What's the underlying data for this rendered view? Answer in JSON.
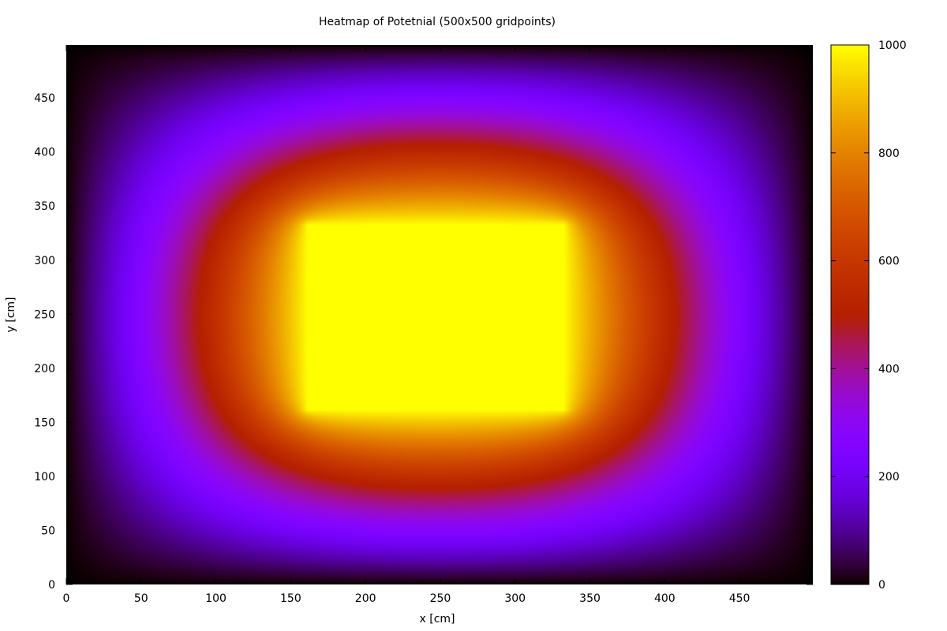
{
  "chart_data": {
    "type": "heatmap",
    "title": "Heatmap of Potetnial (500x500 gridpoints)",
    "xlabel": "x [cm]",
    "ylabel": "y [cm]",
    "xlim": [
      0,
      499
    ],
    "ylim": [
      0,
      499
    ],
    "x_ticks": [
      0,
      50,
      100,
      150,
      200,
      250,
      300,
      350,
      400,
      450
    ],
    "y_ticks": [
      0,
      50,
      100,
      150,
      200,
      250,
      300,
      350,
      400,
      450
    ],
    "colorbar": {
      "range": [
        0,
        1000
      ],
      "ticks": [
        0,
        200,
        400,
        600,
        800,
        1000
      ],
      "palette": "black-blue-purple-red-orange-yellow"
    },
    "field": {
      "description": "Electrostatic potential on a 500x500 grid; boundary held at 0, inner rectangle held at 1000",
      "boundary_value": 0,
      "inner_value": 1000,
      "inner_region": {
        "x": [
          163,
          333
        ],
        "y": [
          163,
          333
        ]
      }
    }
  }
}
